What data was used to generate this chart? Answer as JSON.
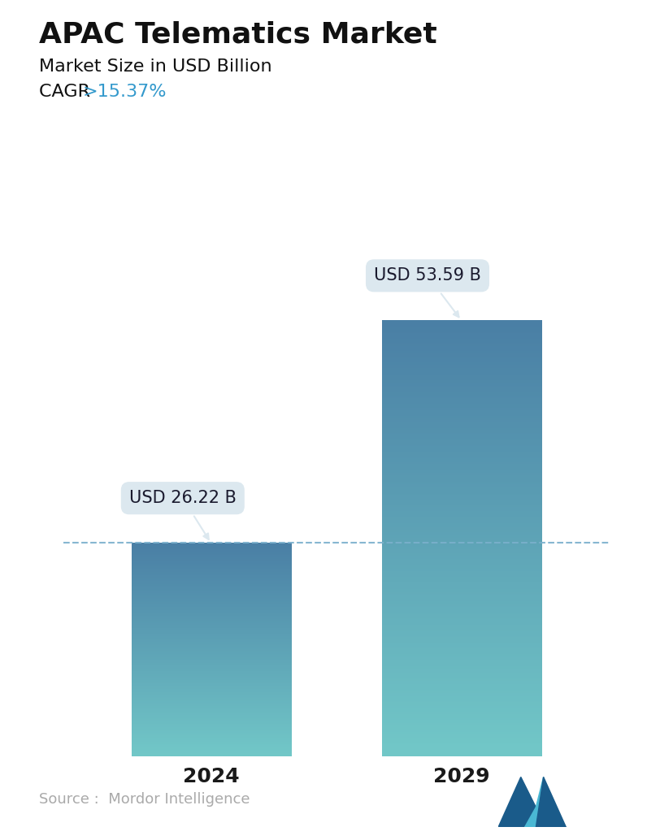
{
  "title": "APAC Telematics Market",
  "subtitle": "Market Size in USD Billion",
  "cagr_label": "CAGR ",
  "cagr_value": ">15.37%",
  "categories": [
    "2024",
    "2029"
  ],
  "values": [
    26.22,
    53.59
  ],
  "bar_labels": [
    "USD 26.22 B",
    "USD 53.59 B"
  ],
  "ylim": [
    0,
    62
  ],
  "dashed_line_y": 26.22,
  "bar_color_top": "#4a7fa5",
  "bar_color_bottom": "#72c8c8",
  "bar_width": 0.28,
  "title_fontsize": 26,
  "subtitle_fontsize": 16,
  "cagr_fontsize": 16,
  "cagr_color": "#3399cc",
  "tick_fontsize": 18,
  "label_fontsize": 15,
  "source_text": "Source :  Mordor Intelligence",
  "source_color": "#aaaaaa",
  "background_color": "#ffffff",
  "dashed_line_color": "#7ab0cc",
  "annotation_bg_color": "#dce8ef",
  "annotation_text_color": "#1a1a2e",
  "x_positions": [
    0.28,
    0.72
  ]
}
